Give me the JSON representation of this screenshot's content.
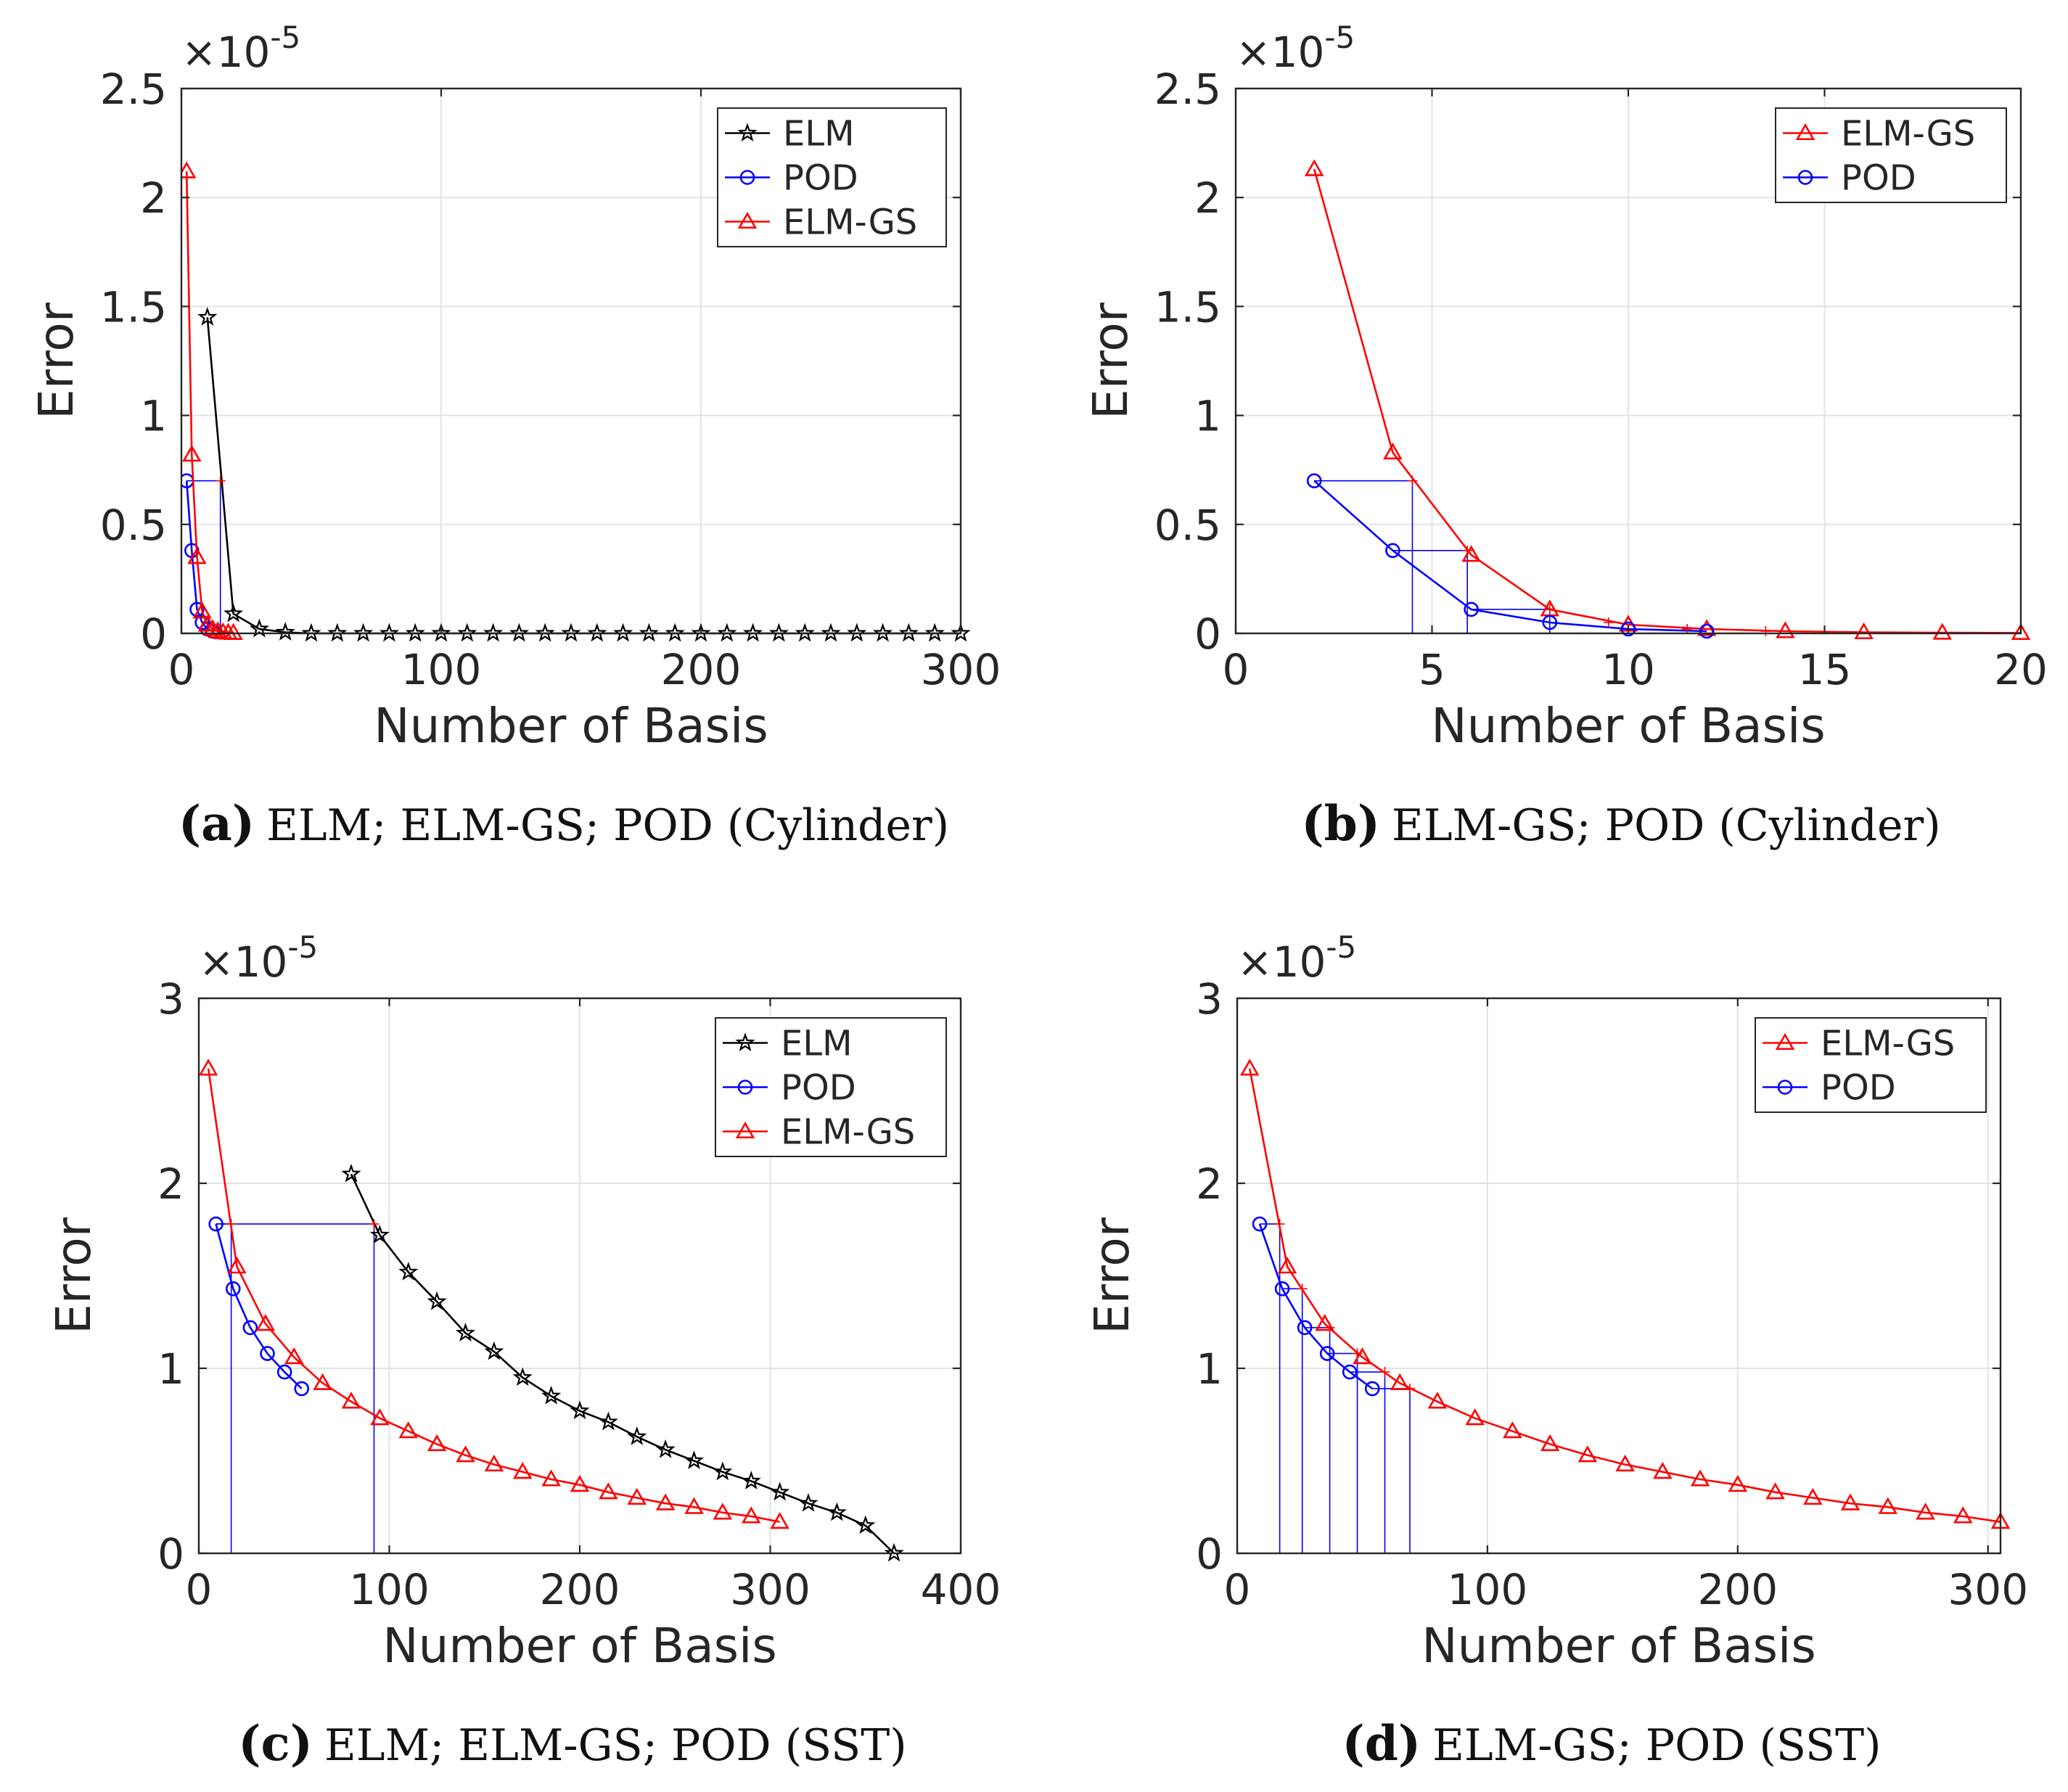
{
  "chart_data": [
    {
      "id": "a",
      "type": "line",
      "caption_letter": "(a)",
      "caption_text": "ELM; ELM-GS; POD (Cylinder)",
      "xlabel": "Number of Basis",
      "ylabel": "Error",
      "exponent_label": "×10",
      "exponent_power": "-5",
      "xlim": [
        0,
        300
      ],
      "ylim": [
        0,
        2.5
      ],
      "xticks": [
        0,
        100,
        200,
        300
      ],
      "yticks": [
        0,
        0.5,
        1,
        1.5,
        2,
        2.5
      ],
      "ytick_labels": [
        "0",
        "0.5",
        "1",
        "1.5",
        "2",
        "2.5"
      ],
      "grid": true,
      "legend_position": "top-right",
      "series": [
        {
          "name": "ELM",
          "color": "#000000",
          "marker": "star",
          "x": [
            10,
            20,
            30,
            40,
            50,
            60,
            70,
            80,
            90,
            100,
            110,
            120,
            130,
            140,
            150,
            160,
            170,
            180,
            190,
            200,
            210,
            220,
            230,
            240,
            250,
            260,
            270,
            280,
            290,
            300
          ],
          "y": [
            1.45,
            0.09,
            0.02,
            0.005,
            0,
            0,
            0,
            0,
            0,
            0,
            0,
            0,
            0,
            0,
            0,
            0,
            0,
            0,
            0,
            0,
            0,
            0,
            0,
            0,
            0,
            0,
            0,
            0,
            0,
            0
          ]
        },
        {
          "name": "POD",
          "color": "#0000ff",
          "marker": "circle",
          "x": [
            2,
            4,
            6,
            8,
            10,
            12
          ],
          "y": [
            0.7,
            0.38,
            0.11,
            0.05,
            0.02,
            0.01
          ]
        },
        {
          "name": "ELM-GS",
          "color": "#ff0000",
          "marker": "triangle",
          "x": [
            2,
            4,
            6,
            8,
            10,
            12,
            14,
            16,
            18,
            20
          ],
          "y": [
            2.12,
            0.82,
            0.35,
            0.1,
            0.04,
            0.02,
            0.01,
            0.005,
            0.003,
            0.002
          ]
        }
      ],
      "guides": [
        {
          "color": "#0000ff",
          "h": {
            "x0": 2,
            "x1": 15,
            "y": 0.7
          },
          "v": {
            "x": 15,
            "y0": 0,
            "y1": 0.7
          }
        }
      ],
      "guide_marks": [
        {
          "x": 15,
          "y": 0.7
        }
      ]
    },
    {
      "id": "b",
      "type": "line",
      "caption_letter": "(b)",
      "caption_text": "ELM-GS; POD (Cylinder)",
      "xlabel": "Number of Basis",
      "ylabel": "Error",
      "exponent_label": "×10",
      "exponent_power": "-5",
      "xlim": [
        0,
        20
      ],
      "ylim": [
        0,
        2.5
      ],
      "xticks": [
        0,
        5,
        10,
        15,
        20
      ],
      "yticks": [
        0,
        0.5,
        1,
        1.5,
        2,
        2.5
      ],
      "ytick_labels": [
        "0",
        "0.5",
        "1",
        "1.5",
        "2",
        "2.5"
      ],
      "grid": true,
      "legend_position": "top-right",
      "series": [
        {
          "name": "ELM-GS",
          "color": "#ff0000",
          "marker": "triangle",
          "x": [
            2,
            4,
            6,
            8,
            10,
            12,
            14,
            16,
            18,
            20
          ],
          "y": [
            2.13,
            0.83,
            0.36,
            0.11,
            0.04,
            0.02,
            0.01,
            0.005,
            0.003,
            0.002
          ]
        },
        {
          "name": "POD",
          "color": "#0000ff",
          "marker": "circle",
          "x": [
            2,
            4,
            6,
            8,
            10,
            12
          ],
          "y": [
            0.7,
            0.38,
            0.11,
            0.05,
            0.02,
            0.01
          ]
        }
      ],
      "guides": [
        {
          "color": "#0000ff",
          "h": {
            "x0": 2,
            "x1": 4.5,
            "y": 0.7
          },
          "v": {
            "x": 4.5,
            "y0": 0,
            "y1": 0.7
          }
        },
        {
          "color": "#0000ff",
          "h": {
            "x0": 4,
            "x1": 5.9,
            "y": 0.38
          },
          "v": {
            "x": 5.9,
            "y0": 0,
            "y1": 0.38
          }
        },
        {
          "color": "#0000ff",
          "h": {
            "x0": 6,
            "x1": 8,
            "y": 0.11
          },
          "v": {
            "x": 8,
            "y0": 0,
            "y1": 0.11
          }
        }
      ],
      "guide_marks": [
        {
          "x": 4.5,
          "y": 0.7
        },
        {
          "x": 5.9,
          "y": 0.38
        },
        {
          "x": 8,
          "y": 0.11
        },
        {
          "x": 9.5,
          "y": 0.05
        },
        {
          "x": 11.5,
          "y": 0.02
        },
        {
          "x": 13.5,
          "y": 0.01
        }
      ]
    },
    {
      "id": "c",
      "type": "line",
      "caption_letter": "(c)",
      "caption_text": "ELM; ELM-GS; POD (SST)",
      "xlabel": "Number of Basis",
      "ylabel": "Error",
      "exponent_label": "×10",
      "exponent_power": "-5",
      "xlim": [
        0,
        400
      ],
      "ylim": [
        0,
        3
      ],
      "xticks": [
        0,
        100,
        200,
        300,
        400
      ],
      "yticks": [
        0,
        1,
        2,
        3
      ],
      "ytick_labels": [
        "0",
        "1",
        "2",
        "3"
      ],
      "grid": true,
      "legend_position": "top-right",
      "series": [
        {
          "name": "ELM",
          "color": "#000000",
          "marker": "star",
          "x": [
            80,
            95,
            110,
            125,
            140,
            155,
            170,
            185,
            200,
            215,
            230,
            245,
            260,
            275,
            290,
            305,
            320,
            335,
            350,
            365
          ],
          "y": [
            2.05,
            1.72,
            1.52,
            1.36,
            1.19,
            1.09,
            0.95,
            0.85,
            0.77,
            0.71,
            0.63,
            0.56,
            0.5,
            0.44,
            0.39,
            0.33,
            0.27,
            0.22,
            0.15,
            0
          ]
        },
        {
          "name": "POD",
          "color": "#0000ff",
          "marker": "circle",
          "x": [
            9,
            18,
            27,
            36,
            45,
            54
          ],
          "y": [
            1.78,
            1.43,
            1.22,
            1.08,
            0.98,
            0.89
          ]
        },
        {
          "name": "ELM-GS",
          "color": "#ff0000",
          "marker": "triangle",
          "x": [
            5,
            20,
            35,
            50,
            65,
            80,
            95,
            110,
            125,
            140,
            155,
            170,
            185,
            200,
            215,
            230,
            245,
            260,
            275,
            290,
            305
          ],
          "y": [
            2.62,
            1.55,
            1.24,
            1.06,
            0.92,
            0.82,
            0.73,
            0.66,
            0.59,
            0.53,
            0.48,
            0.44,
            0.4,
            0.37,
            0.33,
            0.3,
            0.27,
            0.25,
            0.22,
            0.2,
            0.17
          ]
        }
      ],
      "guides": [
        {
          "color": "#0000ff",
          "h": {
            "x0": 9,
            "x1": 92,
            "y": 1.78
          },
          "v": {
            "x": 92,
            "y0": 0,
            "y1": 1.78
          }
        },
        {
          "color": "#0000ff",
          "h": {
            "x0": 9,
            "x1": 17,
            "y": 1.78
          },
          "v": {
            "x": 17,
            "y0": 0,
            "y1": 1.78
          }
        }
      ],
      "guide_marks": [
        {
          "x": 17,
          "y": 1.78
        },
        {
          "x": 92,
          "y": 1.78
        }
      ]
    },
    {
      "id": "d",
      "type": "line",
      "caption_letter": "(d)",
      "caption_text": "ELM-GS; POD (SST)",
      "xlabel": "Number of Basis",
      "ylabel": "Error",
      "exponent_label": "×10",
      "exponent_power": "-5",
      "xlim": [
        0,
        305
      ],
      "ylim": [
        0,
        3
      ],
      "xticks": [
        0,
        100,
        200,
        300
      ],
      "yticks": [
        0,
        1,
        2,
        3
      ],
      "ytick_labels": [
        "0",
        "1",
        "2",
        "3"
      ],
      "grid": true,
      "legend_position": "top-right",
      "series": [
        {
          "name": "ELM-GS",
          "color": "#ff0000",
          "marker": "triangle",
          "x": [
            5,
            20,
            35,
            50,
            65,
            80,
            95,
            110,
            125,
            140,
            155,
            170,
            185,
            200,
            215,
            230,
            245,
            260,
            275,
            290,
            305
          ],
          "y": [
            2.62,
            1.55,
            1.24,
            1.06,
            0.92,
            0.82,
            0.73,
            0.66,
            0.59,
            0.53,
            0.48,
            0.44,
            0.4,
            0.37,
            0.33,
            0.3,
            0.27,
            0.25,
            0.22,
            0.2,
            0.17
          ]
        },
        {
          "name": "POD",
          "color": "#0000ff",
          "marker": "circle",
          "x": [
            9,
            18,
            27,
            36,
            45,
            54
          ],
          "y": [
            1.78,
            1.43,
            1.22,
            1.08,
            0.98,
            0.89
          ]
        }
      ],
      "guides": [
        {
          "color": "#0000ff",
          "h": {
            "x0": 9,
            "x1": 17,
            "y": 1.78
          },
          "v": {
            "x": 17,
            "y0": 0,
            "y1": 1.78
          }
        },
        {
          "color": "#0000ff",
          "h": {
            "x0": 18,
            "x1": 26,
            "y": 1.43
          },
          "v": {
            "x": 26,
            "y0": 0,
            "y1": 1.43
          }
        },
        {
          "color": "#0000ff",
          "h": {
            "x0": 27,
            "x1": 37,
            "y": 1.22
          },
          "v": {
            "x": 37,
            "y0": 0,
            "y1": 1.22
          }
        },
        {
          "color": "#0000ff",
          "h": {
            "x0": 36,
            "x1": 48,
            "y": 1.08
          },
          "v": {
            "x": 48,
            "y0": 0,
            "y1": 1.08
          }
        },
        {
          "color": "#0000ff",
          "h": {
            "x0": 45,
            "x1": 59,
            "y": 0.98
          },
          "v": {
            "x": 59,
            "y0": 0,
            "y1": 0.98
          }
        },
        {
          "color": "#0000ff",
          "h": {
            "x0": 54,
            "x1": 69,
            "y": 0.89
          },
          "v": {
            "x": 69,
            "y0": 0,
            "y1": 0.89
          }
        }
      ],
      "guide_marks": [
        {
          "x": 17,
          "y": 1.78
        },
        {
          "x": 26,
          "y": 1.43
        },
        {
          "x": 37,
          "y": 1.22
        },
        {
          "x": 48,
          "y": 1.08
        },
        {
          "x": 59,
          "y": 0.98
        },
        {
          "x": 69,
          "y": 0.89
        }
      ]
    }
  ]
}
